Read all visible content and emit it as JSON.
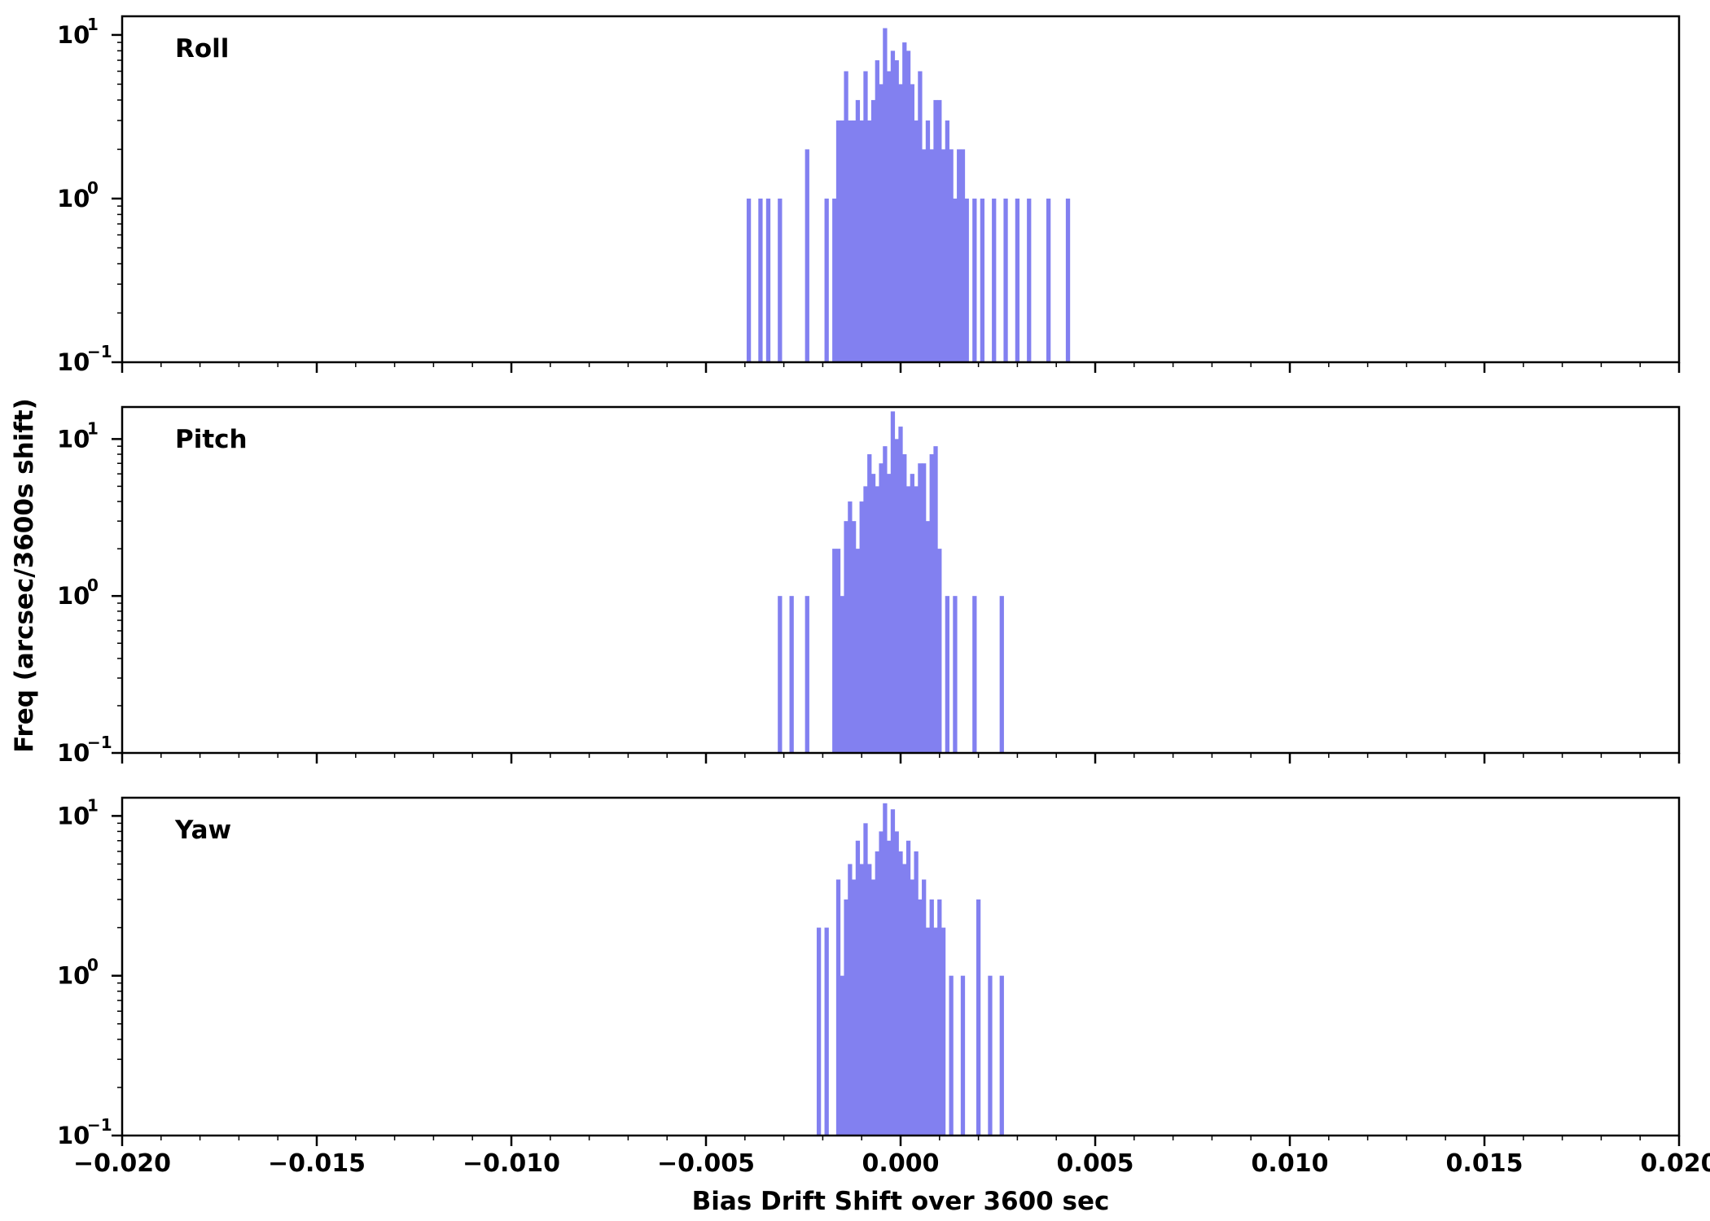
{
  "figure": {
    "xlabel": "Bias Drift Shift over 3600 sec",
    "ylabel": "Freq (arcsec/3600s shift)",
    "bar_color": "#8280f0",
    "axis_color": "#000000",
    "background": "#ffffff",
    "xticks": [
      -0.02,
      -0.015,
      -0.01,
      -0.005,
      0.0,
      0.005,
      0.01,
      0.015,
      0.02
    ],
    "xtick_labels": [
      "−0.020",
      "−0.015",
      "−0.010",
      "−0.005",
      "0.000",
      "0.005",
      "0.010",
      "0.015",
      "0.020"
    ],
    "yticks": [
      10,
      1,
      0.1
    ],
    "ytick_exponent_labels": [
      "1",
      "0",
      "−1"
    ]
  },
  "chart_data": [
    {
      "type": "bar",
      "name": "Roll",
      "yscale": "log",
      "xlim": [
        -0.02,
        0.02
      ],
      "ylim": [
        0.1,
        13
      ],
      "bin_width": 0.0001,
      "x": [
        -0.0039,
        -0.0036,
        -0.0034,
        -0.0031,
        -0.0024,
        -0.0019,
        -0.0017,
        -0.0016,
        -0.0015,
        -0.0014,
        -0.0013,
        -0.0012,
        -0.0011,
        -0.001,
        -0.0009,
        -0.0008,
        -0.0007,
        -0.0006,
        -0.0005,
        -0.0004,
        -0.0003,
        -0.0002,
        -0.0001,
        0.0,
        0.0001,
        0.0002,
        0.0003,
        0.0004,
        0.0005,
        0.0006,
        0.0007,
        0.0008,
        0.0009,
        0.001,
        0.0011,
        0.0012,
        0.0013,
        0.0014,
        0.0015,
        0.0016,
        0.0017,
        0.0019,
        0.0021,
        0.0024,
        0.0027,
        0.003,
        0.0033,
        0.0038,
        0.0043
      ],
      "values": [
        1,
        1,
        1,
        1,
        2,
        1,
        1,
        3,
        3,
        6,
        3,
        3,
        4,
        3,
        6,
        3,
        4,
        7,
        5,
        11,
        6,
        8,
        7,
        5,
        9,
        8,
        5,
        3,
        6,
        2,
        3,
        2,
        4,
        4,
        2,
        3,
        2,
        1,
        2,
        2,
        1,
        1,
        1,
        1,
        1,
        1,
        1,
        1,
        1
      ]
    },
    {
      "type": "bar",
      "name": "Pitch",
      "yscale": "log",
      "xlim": [
        -0.02,
        0.02
      ],
      "ylim": [
        0.1,
        16
      ],
      "bin_width": 0.0001,
      "x": [
        -0.0031,
        -0.0028,
        -0.0024,
        -0.0017,
        -0.0016,
        -0.0015,
        -0.0014,
        -0.0013,
        -0.0012,
        -0.0011,
        -0.001,
        -0.0009,
        -0.0008,
        -0.0007,
        -0.0006,
        -0.0005,
        -0.0004,
        -0.0003,
        -0.0002,
        -0.0001,
        0.0,
        0.0001,
        0.0002,
        0.0003,
        0.0004,
        0.0005,
        0.0006,
        0.0007,
        0.0008,
        0.0009,
        0.001,
        0.0012,
        0.0014,
        0.0019,
        0.0026
      ],
      "values": [
        1,
        1,
        1,
        2,
        2,
        1,
        3,
        4,
        3,
        2,
        4,
        5,
        8,
        6,
        5,
        7,
        9,
        6,
        15,
        10,
        12,
        8,
        5,
        6,
        5,
        7,
        7,
        3,
        8,
        9,
        2,
        1,
        1,
        1,
        1
      ]
    },
    {
      "type": "bar",
      "name": "Yaw",
      "yscale": "log",
      "xlim": [
        -0.02,
        0.02
      ],
      "ylim": [
        0.1,
        13
      ],
      "bin_width": 0.0001,
      "x": [
        -0.0021,
        -0.0019,
        -0.0016,
        -0.0015,
        -0.0014,
        -0.0013,
        -0.0012,
        -0.0011,
        -0.001,
        -0.0009,
        -0.0008,
        -0.0007,
        -0.0006,
        -0.0005,
        -0.0004,
        -0.0003,
        -0.0002,
        -0.0001,
        0.0,
        0.0001,
        0.0002,
        0.0003,
        0.0004,
        0.0005,
        0.0006,
        0.0007,
        0.0008,
        0.0009,
        0.001,
        0.0011,
        0.0013,
        0.0016,
        0.002,
        0.0023,
        0.0026
      ],
      "values": [
        2,
        2,
        4,
        1,
        3,
        5,
        4,
        7,
        5,
        9,
        5,
        4,
        6,
        8,
        12,
        7,
        11,
        8,
        6,
        5,
        7,
        4,
        6,
        3,
        4,
        2,
        3,
        2,
        3,
        2,
        1,
        1,
        3,
        1,
        1
      ]
    }
  ]
}
